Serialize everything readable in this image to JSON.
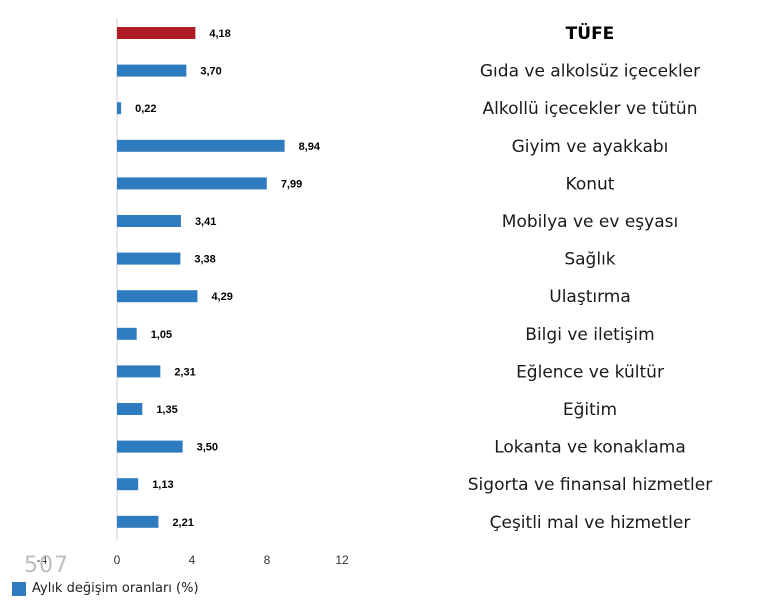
{
  "chart_data": {
    "type": "bar",
    "orientation": "horizontal",
    "categories": [
      "TÜFE",
      "Gıda ve alkolsüz içecekler",
      "Alkollü içecekler ve tütün",
      "Giyim ve ayakkabı",
      "Konut",
      "Mobilya ve ev eşyası",
      "Sağlık",
      "Ulaştırma",
      "Bilgi ve iletişim",
      "Eğlence ve kültür",
      "Eğitim",
      "Lokanta ve konaklama",
      "Sigorta ve finansal hizmetler",
      "Çeşitli mal ve hizmetler"
    ],
    "series": [
      {
        "name": "Aylık değişim oranları (%)",
        "values": [
          4.18,
          3.7,
          0.22,
          8.94,
          7.99,
          3.41,
          3.38,
          4.29,
          1.05,
          2.31,
          1.35,
          3.5,
          1.13,
          2.21
        ]
      }
    ],
    "value_labels": [
      "4,18",
      "3,70",
      "0,22",
      "8,94",
      "7,99",
      "3,41",
      "3,38",
      "4,29",
      "1,05",
      "2,31",
      "1,35",
      "3,50",
      "1,13",
      "2,21"
    ],
    "xlim": [
      -4,
      12
    ],
    "xticks": [
      -4,
      0,
      4,
      8,
      12
    ],
    "xtick_labels": [
      "-4",
      "0",
      "4",
      "8",
      "12"
    ],
    "highlight_index": 0,
    "colors": {
      "bar": "#2e7bbf",
      "highlight": "#b01c24",
      "axis": "#d0d0d0"
    },
    "legend_position": "bottom-left",
    "grid": false,
    "title": "",
    "xlabel": "",
    "ylabel": ""
  },
  "watermark": "507"
}
